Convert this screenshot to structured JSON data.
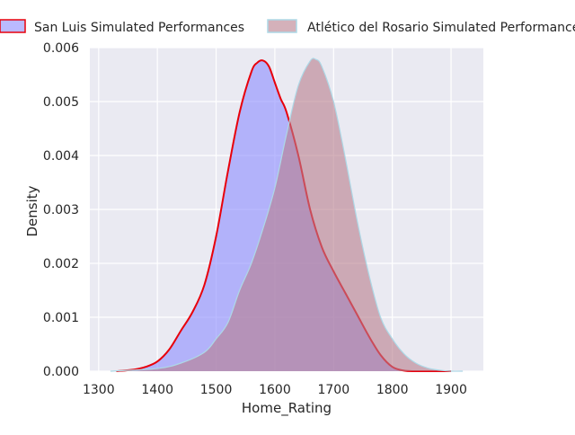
{
  "chart_data": {
    "type": "area",
    "title": "",
    "xlabel": "Home_Rating",
    "ylabel": "Density",
    "xlim": [
      1285,
      1955
    ],
    "ylim": [
      0,
      0.006
    ],
    "xticks": [
      1300,
      1400,
      1500,
      1600,
      1700,
      1800,
      1900
    ],
    "xtick_labels": [
      "1300",
      "1400",
      "1500",
      "1600",
      "1700",
      "1800",
      "1900"
    ],
    "yticks": [
      0.0,
      0.001,
      0.002,
      0.003,
      0.004,
      0.005,
      0.006
    ],
    "ytick_labels": [
      "0.000",
      "0.001",
      "0.002",
      "0.003",
      "0.004",
      "0.005",
      "0.006"
    ],
    "grid": true,
    "legend_position": "top",
    "series": [
      {
        "name": "San Luis Simulated Performances",
        "fill_color": "#8c8cff",
        "line_color": "#e8000b",
        "x": [
          1330,
          1360,
          1380,
          1400,
          1420,
          1440,
          1460,
          1480,
          1500,
          1520,
          1540,
          1560,
          1570,
          1580,
          1590,
          1600,
          1610,
          1620,
          1640,
          1660,
          1680,
          1700,
          1720,
          1740,
          1760,
          1780,
          1800,
          1820,
          1840,
          1860,
          1880,
          1900
        ],
        "y": [
          0.0,
          3e-05,
          8e-05,
          0.00018,
          0.0004,
          0.00075,
          0.0011,
          0.0016,
          0.0025,
          0.0037,
          0.0048,
          0.00555,
          0.00572,
          0.00576,
          0.00565,
          0.00535,
          0.00505,
          0.0048,
          0.004,
          0.003,
          0.0023,
          0.00185,
          0.00145,
          0.00105,
          0.00065,
          0.0003,
          8e-05,
          1e-05,
          0.0,
          0.0,
          0.0,
          0.0
        ]
      },
      {
        "name": "Atlético del Rosario Simulated Performances",
        "fill_color": "#b87d8c",
        "line_color": "#add8e6",
        "x": [
          1320,
          1400,
          1440,
          1480,
          1500,
          1520,
          1540,
          1560,
          1580,
          1600,
          1620,
          1640,
          1660,
          1670,
          1680,
          1700,
          1720,
          1740,
          1760,
          1780,
          1800,
          1820,
          1840,
          1860,
          1880,
          1900,
          1920
        ],
        "y": [
          0.0,
          5e-05,
          0.00015,
          0.00035,
          0.0006,
          0.0009,
          0.0015,
          0.002,
          0.00265,
          0.0034,
          0.0044,
          0.0053,
          0.00575,
          0.00578,
          0.00565,
          0.005,
          0.00395,
          0.0028,
          0.0018,
          0.001,
          0.0006,
          0.00032,
          0.00015,
          6e-05,
          2e-05,
          0.0,
          0.0
        ]
      }
    ]
  }
}
